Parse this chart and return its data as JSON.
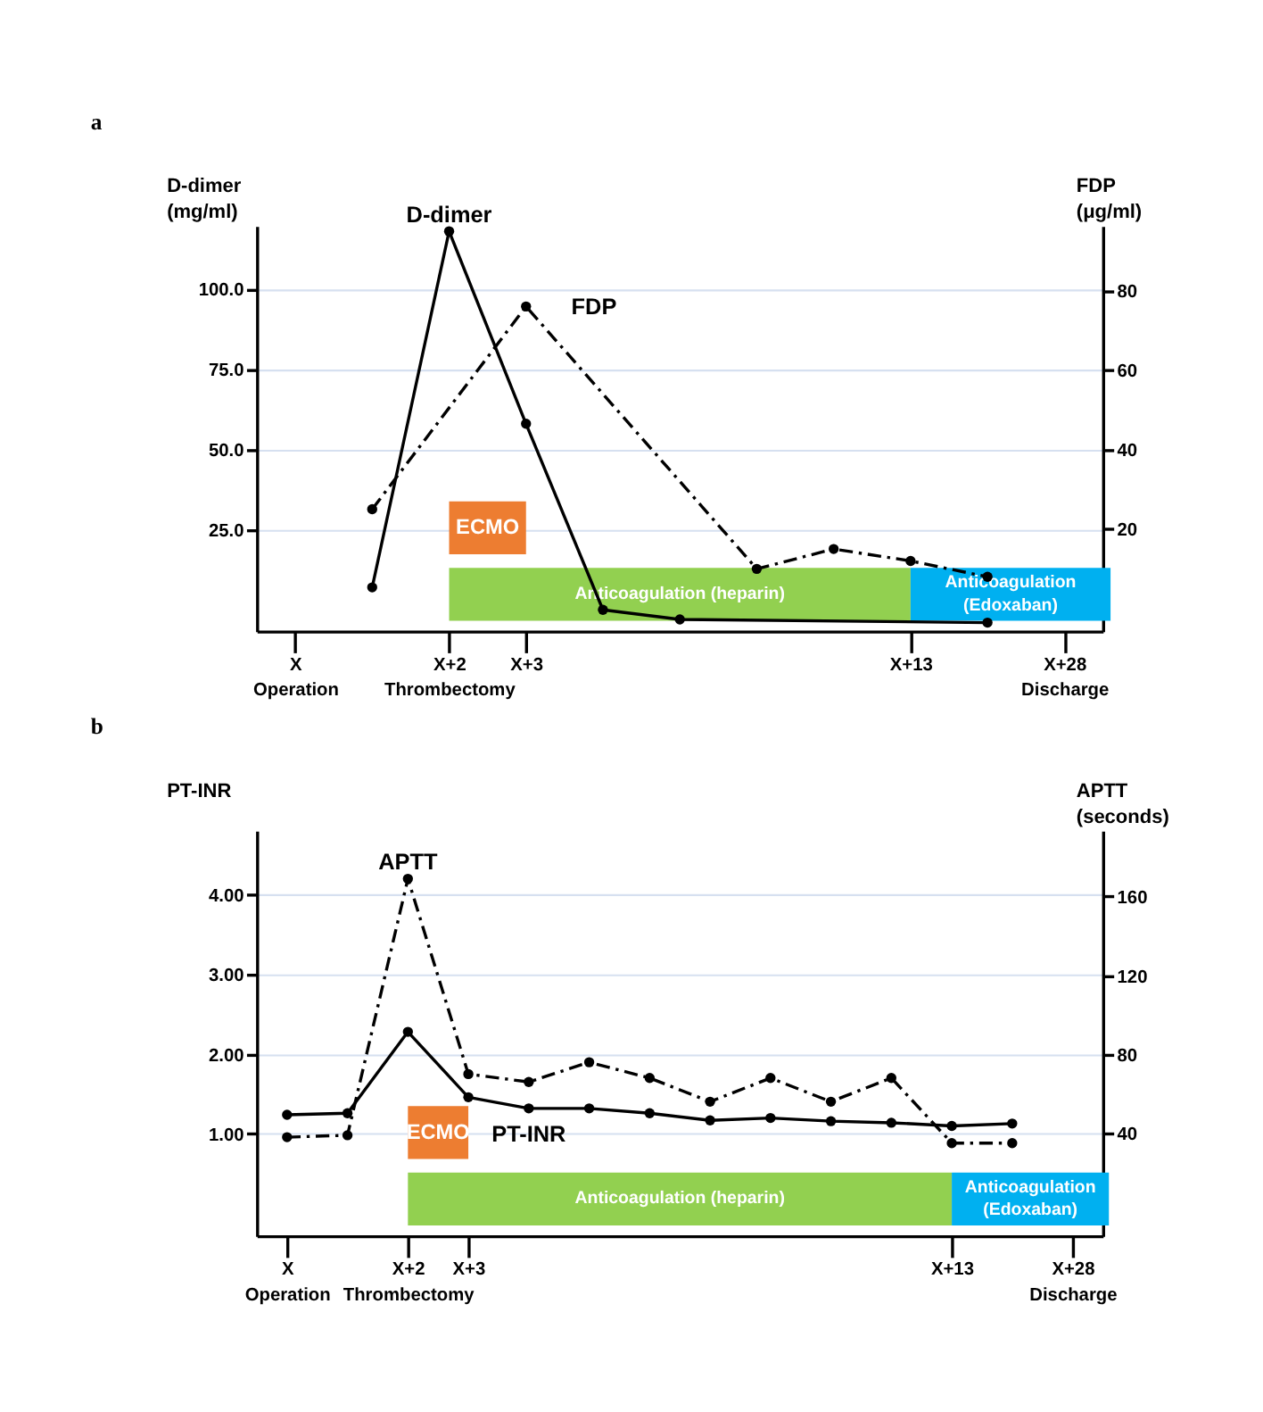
{
  "chart_data": [
    {
      "type": "line",
      "title": "a",
      "ylabel": "D-dimer\n(mg/ml)",
      "y2label": "FDP\n(μg/ml)",
      "categories": [
        "X\nOperation",
        null,
        "X+2\nThrombectomy",
        "X+3",
        null,
        null,
        null,
        null,
        "X+13",
        null,
        "X+28\nDischarge"
      ],
      "ylim": [
        -6.7,
        119.6
      ],
      "yticks": [
        {
          "value": 25,
          "label": "25.0"
        },
        {
          "value": 50,
          "label": "50.0"
        },
        {
          "value": 75,
          "label": "75.0"
        },
        {
          "value": 100,
          "label": "100.0"
        }
      ],
      "y2lim": [
        -5.7,
        96.2
      ],
      "y2ticks": [
        20,
        40,
        60,
        80
      ],
      "grid": "y",
      "marker": "circle",
      "series": [
        {
          "name": "D-dimer",
          "color": "#000000",
          "line_style": "solid",
          "values": [
            null,
            7,
            118,
            58,
            0,
            -3,
            null,
            null,
            null,
            -4,
            null
          ]
        },
        {
          "name": "FDP",
          "color": "#000000",
          "line_style": "dashed",
          "axis": "y2",
          "values": [
            null,
            25,
            null,
            76,
            null,
            null,
            10,
            15,
            12,
            8,
            null
          ]
        }
      ],
      "bands": [
        {
          "axis": "x",
          "from": "X+2\nThrombectomy",
          "to": "X+3",
          "label": "ECMO",
          "color": "#ed7d31"
        },
        {
          "axis": "x",
          "from": "X+2\nThrombectomy",
          "to": "X+13",
          "label": "Anticoagulation (heparin)",
          "color": "#92d050"
        },
        {
          "axis": "x",
          "from": "X+13",
          "to": "X+28\nDischarge",
          "label": "Anticoagulation\n(Edoxaban)",
          "color": "#00b0f0"
        }
      ]
    },
    {
      "type": "line",
      "title": "b",
      "ylabel": "PT-INR",
      "y2label": "APTT\n(seconds)",
      "categories": [
        "X\nOperation",
        null,
        "X+2\nThrombectomy",
        "X+3",
        null,
        null,
        null,
        null,
        null,
        null,
        null,
        "X+13",
        null,
        "X+28\nDischarge"
      ],
      "ylim": [
        -0.28,
        4.8
      ],
      "yticks": [
        {
          "value": 1,
          "label": "1.00"
        },
        {
          "value": 2,
          "label": "2.00"
        },
        {
          "value": 3,
          "label": "3.00"
        },
        {
          "value": 4,
          "label": "4.00"
        }
      ],
      "y2lim": [
        -12.1,
        193.3
      ],
      "y2ticks": [
        40,
        80,
        120,
        160
      ],
      "grid": "y",
      "marker": "circle",
      "series": [
        {
          "name": "PT-INR",
          "color": "#000000",
          "line_style": "solid",
          "values": [
            1.24,
            1.26,
            2.28,
            1.46,
            1.32,
            1.32,
            1.26,
            1.17,
            1.2,
            1.16,
            1.14,
            1.1,
            1.13,
            null
          ]
        },
        {
          "name": "APTT",
          "color": "#000000",
          "line_style": "dashed",
          "axis": "y2",
          "values": [
            38,
            39,
            169,
            70,
            66,
            76,
            68,
            56,
            68,
            56,
            68,
            35,
            35,
            null
          ]
        }
      ],
      "bands": [
        {
          "axis": "x",
          "from": "X+2\nThrombectomy",
          "to": "X+3",
          "label": "ECMO",
          "color": "#ed7d31"
        },
        {
          "axis": "x",
          "from": "X+2\nThrombectomy",
          "to": "X+13",
          "label": "Anticoagulation (heparin)",
          "color": "#92d050"
        },
        {
          "axis": "x",
          "from": "X+13",
          "to": "X+28\nDischarge",
          "label": "Anticoagulation\n(Edoxaban)",
          "color": "#00b0f0"
        }
      ]
    }
  ]
}
